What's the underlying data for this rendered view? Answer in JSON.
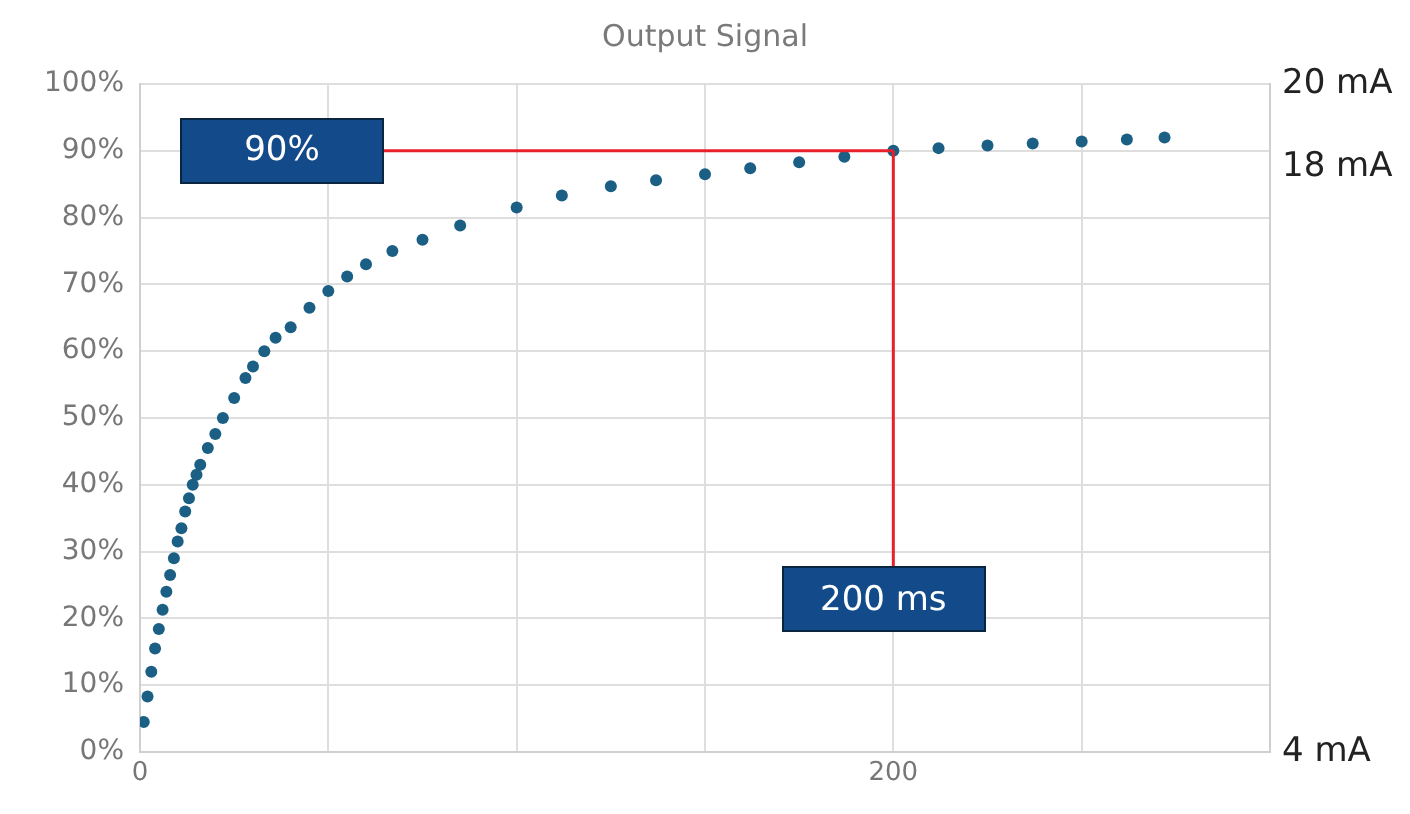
{
  "chart_data": {
    "type": "scatter",
    "title": "Output Signal",
    "x": [
      1,
      2,
      3,
      4,
      5,
      6,
      7,
      8,
      9,
      10,
      11,
      12,
      13,
      14,
      15,
      16,
      18,
      20,
      22,
      25,
      28,
      30,
      33,
      36,
      40,
      45,
      50,
      55,
      60,
      67,
      75,
      85,
      100,
      112,
      125,
      137,
      150,
      162,
      175,
      187,
      200,
      212,
      225,
      237,
      250,
      262,
      272
    ],
    "series": [
      {
        "color": "#1b5f84",
        "values": [
          4.5,
          8.3,
          12,
          15.5,
          18.4,
          21.3,
          24,
          26.5,
          29,
          31.5,
          33.5,
          36,
          38,
          40,
          41.5,
          43,
          45.5,
          47.6,
          50,
          53,
          56,
          57.7,
          60,
          62,
          63.6,
          66.5,
          69,
          71.2,
          73,
          75,
          76.7,
          78.8,
          81.5,
          83.3,
          84.7,
          85.6,
          86.5,
          87.4,
          88.3,
          89.1,
          90,
          90.4,
          90.8,
          91.1,
          91.4,
          91.7,
          92
        ]
      }
    ],
    "xlim": [
      0,
      300
    ],
    "xticks": [
      0,
      {
        "value": 50,
        "label": null
      },
      {
        "value": 100,
        "label": null
      },
      {
        "value": 150,
        "label": null
      },
      200,
      {
        "value": 250,
        "label": null
      },
      {
        "value": 300,
        "label": null
      }
    ],
    "ylim": [
      0,
      100
    ],
    "yticks": [
      {
        "value": 0,
        "label": "0%"
      },
      {
        "value": 10,
        "label": "10%"
      },
      {
        "value": 20,
        "label": "20%"
      },
      {
        "value": 30,
        "label": "30%"
      },
      {
        "value": 40,
        "label": "40%"
      },
      {
        "value": 50,
        "label": "50%"
      },
      {
        "value": 60,
        "label": "60%"
      },
      {
        "value": 70,
        "label": "70%"
      },
      {
        "value": 80,
        "label": "80%"
      },
      {
        "value": 90,
        "label": "90%"
      },
      {
        "value": 100,
        "label": "100%"
      }
    ],
    "y2lim": [
      4,
      20
    ],
    "y2ticks": [
      {
        "value": 4,
        "label": "4 mA"
      },
      {
        "value": 18,
        "label": "18 mA"
      },
      {
        "value": 20,
        "label": "20 mA"
      }
    ],
    "ref_lines": [
      {
        "axis": "y",
        "value": 90,
        "label": "90%",
        "color": "#e8202a"
      },
      {
        "axis": "x",
        "value": 200,
        "label": "200 ms",
        "color": "#e8202a"
      }
    ],
    "grid": true,
    "legend": false,
    "marker": "circle"
  }
}
